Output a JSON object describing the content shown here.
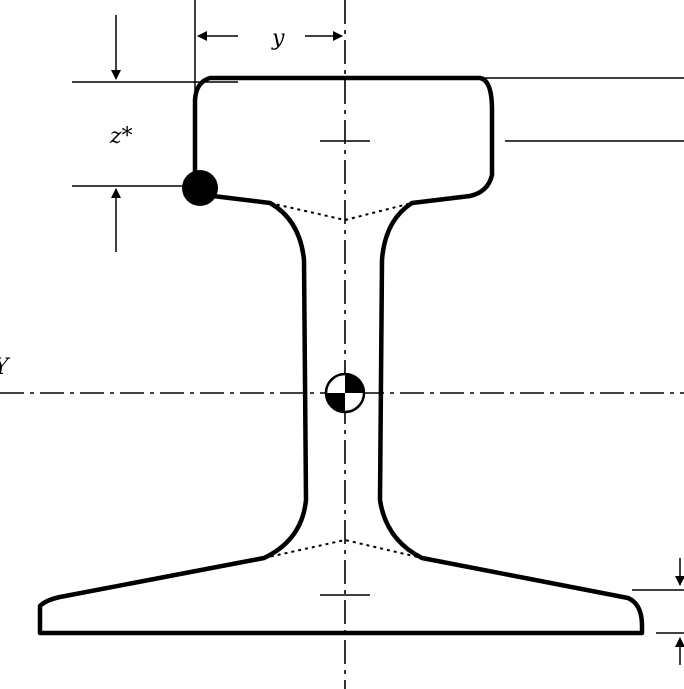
{
  "labels": {
    "y_dimension": "y",
    "z_dimension": "z*",
    "y_axis": "Y"
  }
}
